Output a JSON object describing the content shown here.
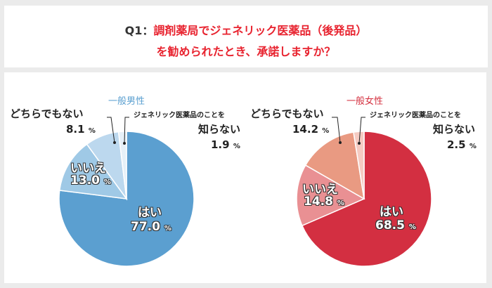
{
  "header": {
    "question_no": "Q1：",
    "title_line1": "調剤薬局でジェネリック医薬品（後発品）",
    "title_line2": "を勧められたとき、承諾しますか？"
  },
  "chart_data": [
    {
      "type": "pie",
      "title": "一般男性",
      "title_color": "#5a9fd0",
      "categories": [
        "はい",
        "いいえ",
        "どちらでもない",
        "ジェネリック医薬品のことを知らない"
      ],
      "values": [
        77.0,
        13.0,
        8.1,
        1.9
      ],
      "colors": [
        "#5b9fd0",
        "#9fc9e6",
        "#bcd8ee",
        "#e6f0f8"
      ],
      "labels": [
        "77.0",
        "13.0",
        "8.1",
        "1.9"
      ],
      "unit": "%"
    },
    {
      "type": "pie",
      "title": "一般女性",
      "title_color": "#d4303f",
      "categories": [
        "はい",
        "いいえ",
        "どちらでもない",
        "ジェネリック医薬品のことを知らない"
      ],
      "values": [
        68.5,
        14.8,
        14.2,
        2.5
      ],
      "colors": [
        "#d32f41",
        "#e99093",
        "#e99a82",
        "#f5cbc2"
      ],
      "labels": [
        "68.5",
        "14.8",
        "14.2",
        "2.5"
      ],
      "unit": "%"
    }
  ],
  "legend_labels": {
    "unknown_line1": "ジェネリック医薬品のことを",
    "unknown_line2": "知らない"
  }
}
